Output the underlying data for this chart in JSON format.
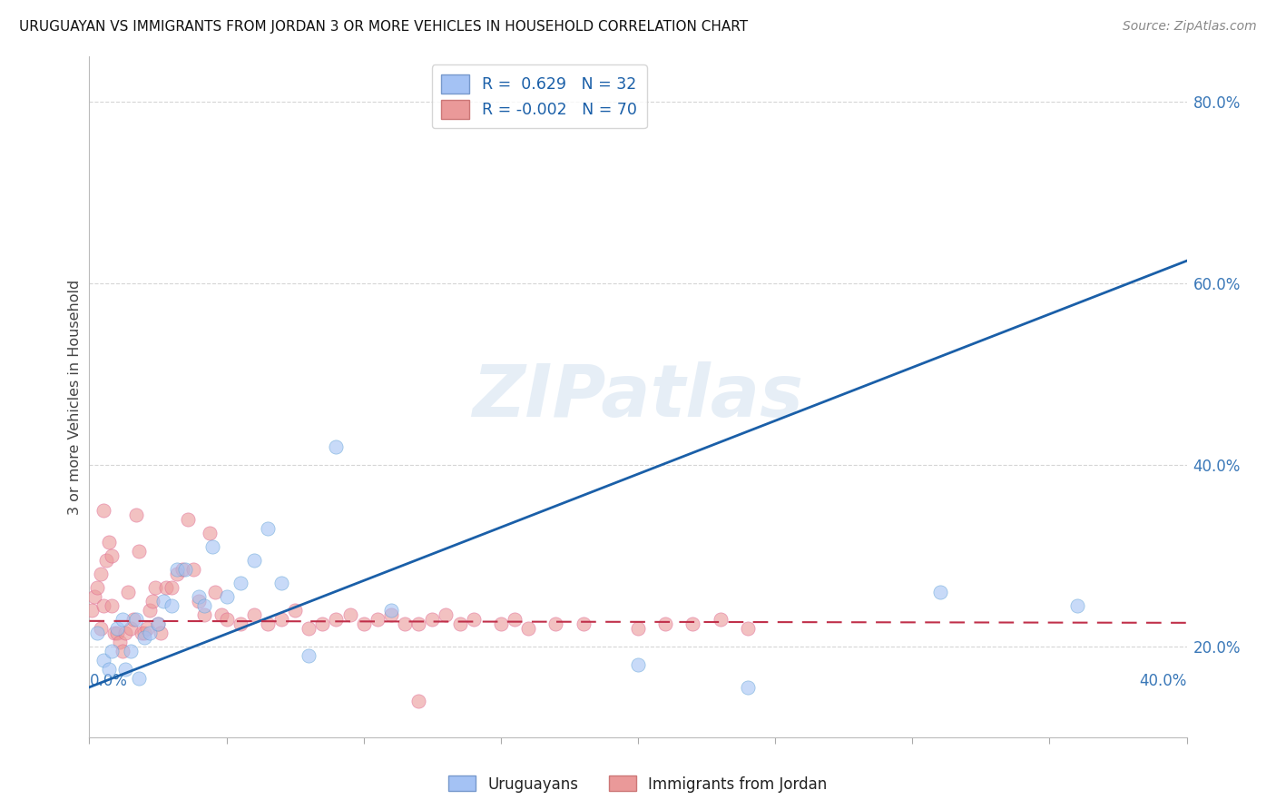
{
  "title": "URUGUAYAN VS IMMIGRANTS FROM JORDAN 3 OR MORE VEHICLES IN HOUSEHOLD CORRELATION CHART",
  "source": "Source: ZipAtlas.com",
  "ylabel": "3 or more Vehicles in Household",
  "xlim": [
    0.0,
    0.4
  ],
  "ylim": [
    0.1,
    0.85
  ],
  "ytick_labels": [
    "20.0%",
    "40.0%",
    "60.0%",
    "80.0%"
  ],
  "ytick_values": [
    0.2,
    0.4,
    0.6,
    0.8
  ],
  "legend_r_blue": "0.629",
  "legend_n_blue": "32",
  "legend_r_pink": "-0.002",
  "legend_n_pink": "70",
  "blue_scatter_color": "#a4c2f4",
  "pink_scatter_color": "#ea9999",
  "watermark": "ZIPatlas",
  "blue_points_x": [
    0.003,
    0.005,
    0.007,
    0.008,
    0.01,
    0.012,
    0.013,
    0.015,
    0.017,
    0.018,
    0.02,
    0.022,
    0.025,
    0.027,
    0.03,
    0.032,
    0.035,
    0.04,
    0.042,
    0.045,
    0.05,
    0.055,
    0.06,
    0.065,
    0.07,
    0.08,
    0.09,
    0.11,
    0.2,
    0.24,
    0.31,
    0.36
  ],
  "blue_points_y": [
    0.215,
    0.185,
    0.175,
    0.195,
    0.22,
    0.23,
    0.175,
    0.195,
    0.23,
    0.165,
    0.21,
    0.215,
    0.225,
    0.25,
    0.245,
    0.285,
    0.285,
    0.255,
    0.245,
    0.31,
    0.255,
    0.27,
    0.295,
    0.33,
    0.27,
    0.19,
    0.42,
    0.24,
    0.18,
    0.155,
    0.26,
    0.245
  ],
  "pink_points_x": [
    0.001,
    0.002,
    0.003,
    0.004,
    0.004,
    0.005,
    0.005,
    0.006,
    0.007,
    0.008,
    0.008,
    0.009,
    0.01,
    0.011,
    0.012,
    0.013,
    0.014,
    0.015,
    0.016,
    0.017,
    0.018,
    0.019,
    0.02,
    0.021,
    0.022,
    0.023,
    0.024,
    0.025,
    0.026,
    0.028,
    0.03,
    0.032,
    0.034,
    0.036,
    0.038,
    0.04,
    0.042,
    0.044,
    0.046,
    0.048,
    0.05,
    0.055,
    0.06,
    0.065,
    0.07,
    0.075,
    0.08,
    0.085,
    0.09,
    0.095,
    0.1,
    0.105,
    0.11,
    0.115,
    0.12,
    0.125,
    0.13,
    0.135,
    0.14,
    0.15,
    0.155,
    0.16,
    0.17,
    0.18,
    0.2,
    0.21,
    0.22,
    0.23,
    0.24,
    0.12
  ],
  "pink_points_y": [
    0.24,
    0.255,
    0.265,
    0.22,
    0.28,
    0.35,
    0.245,
    0.295,
    0.315,
    0.3,
    0.245,
    0.215,
    0.215,
    0.205,
    0.195,
    0.215,
    0.26,
    0.22,
    0.23,
    0.345,
    0.305,
    0.215,
    0.215,
    0.22,
    0.24,
    0.25,
    0.265,
    0.225,
    0.215,
    0.265,
    0.265,
    0.28,
    0.285,
    0.34,
    0.285,
    0.25,
    0.235,
    0.325,
    0.26,
    0.235,
    0.23,
    0.225,
    0.235,
    0.225,
    0.23,
    0.24,
    0.22,
    0.225,
    0.23,
    0.235,
    0.225,
    0.23,
    0.235,
    0.225,
    0.225,
    0.23,
    0.235,
    0.225,
    0.23,
    0.225,
    0.23,
    0.22,
    0.225,
    0.225,
    0.22,
    0.225,
    0.225,
    0.23,
    0.22,
    0.14
  ],
  "blue_line_x": [
    0.0,
    0.4
  ],
  "blue_line_y": [
    0.155,
    0.625
  ],
  "pink_line_x": [
    0.0,
    0.4
  ],
  "pink_line_y": [
    0.228,
    0.226
  ],
  "background_color": "#ffffff",
  "grid_color": "#cccccc"
}
